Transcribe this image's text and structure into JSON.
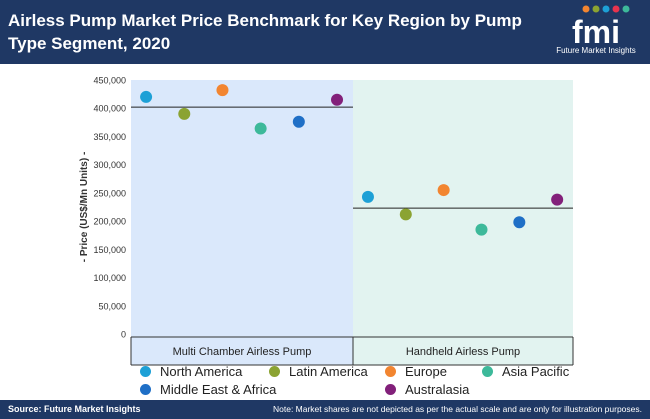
{
  "header": {
    "title": "Airless Pump Market Price Benchmark for Key Region by Pump Type Segment, 2020",
    "logo_text": "fmi",
    "logo_tagline": "Future Market Insights",
    "background": "#1f3864"
  },
  "footer": {
    "source": "Source: Future Market Insights",
    "note": "Note: Market shares are not depicted as per the actual scale and are only for illustration purposes."
  },
  "chart_data": {
    "type": "scatter",
    "title": "Airless Pump Market Price Benchmark for Key Region by Pump Type Segment, 2020",
    "ylabel": "- Price (US$/Mn Units) -",
    "ylim": [
      0,
      450000
    ],
    "yticks": [
      0,
      50000,
      100000,
      150000,
      200000,
      250000,
      300000,
      350000,
      400000,
      450000
    ],
    "ytick_labels": [
      "0",
      "50,000",
      "100,000",
      "150,000",
      "200,000",
      "250,000",
      "300,000",
      "350,000",
      "400,000",
      "450,000"
    ],
    "grid": false,
    "legend_position": "bottom",
    "categories": [
      "Multi Chamber Airless Pump",
      "Handheld Airless Pump"
    ],
    "category_colors": [
      "#dae8fb",
      "#e2f3f0"
    ],
    "averages": [
      402000,
      223000
    ],
    "series": [
      {
        "name": "North America",
        "color": "#1da0d6",
        "values": [
          420000,
          243000
        ]
      },
      {
        "name": "Latin America",
        "color": "#8ba332",
        "values": [
          390000,
          212000
        ]
      },
      {
        "name": "Europe",
        "color": "#f28530",
        "values": [
          432000,
          255000
        ]
      },
      {
        "name": "Asia Pacific",
        "color": "#3db99a",
        "values": [
          364000,
          185000
        ]
      },
      {
        "name": "Middle East & Africa",
        "color": "#1f6fc6",
        "values": [
          376000,
          198000
        ]
      },
      {
        "name": "Australasia",
        "color": "#82207a",
        "values": [
          415000,
          238000
        ]
      }
    ]
  }
}
